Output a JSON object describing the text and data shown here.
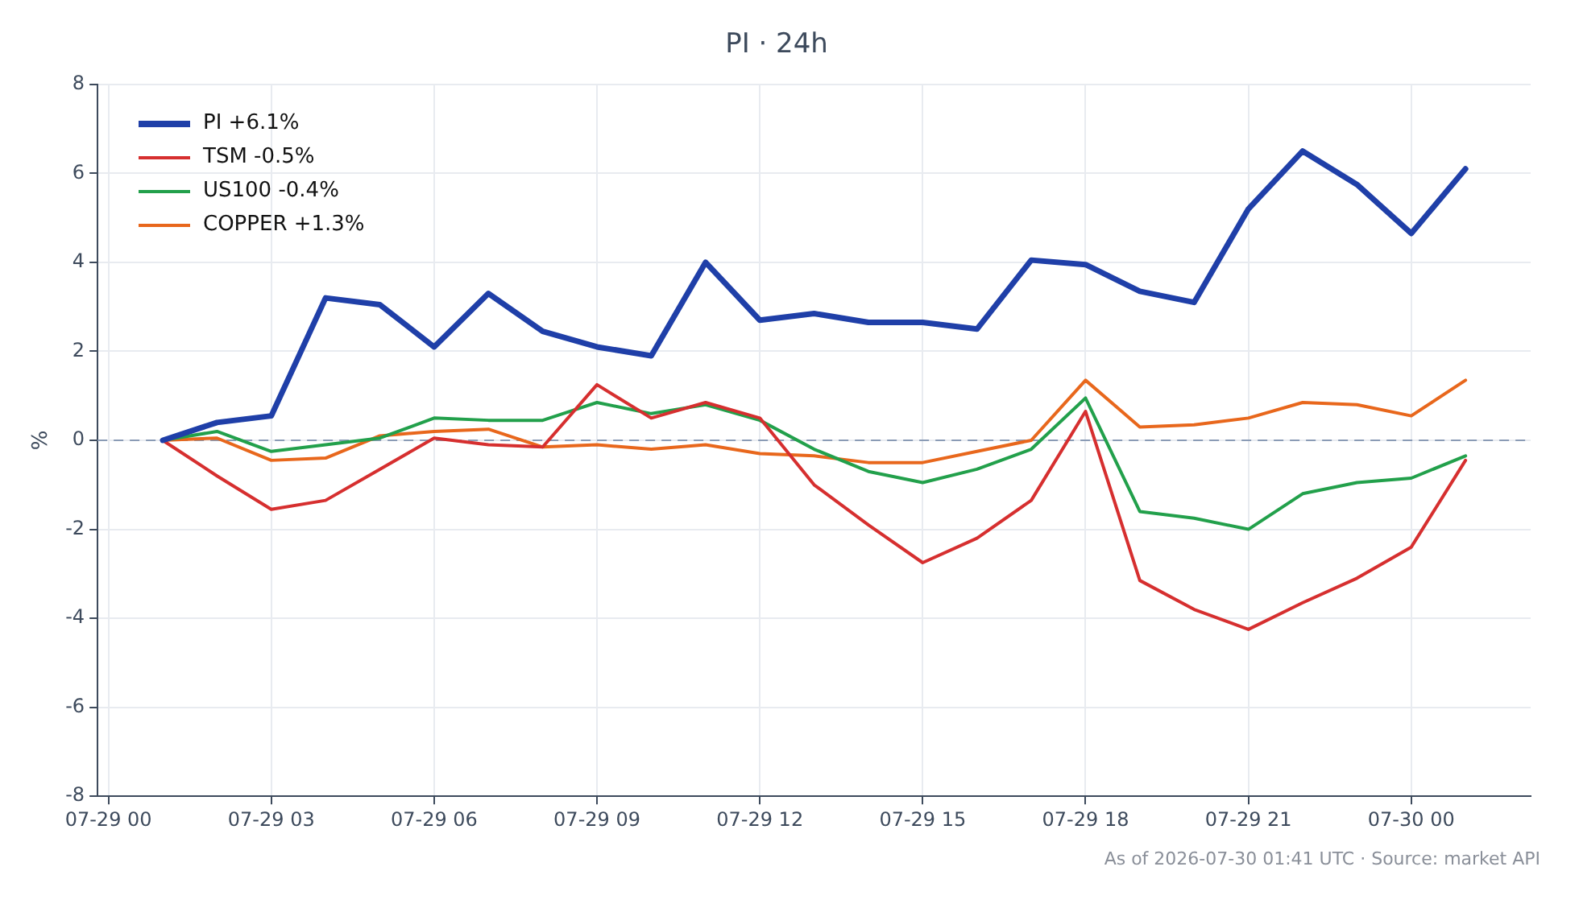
{
  "chart_data": {
    "type": "line",
    "title": "PI · 24h",
    "ylabel": "%",
    "x": [
      "--07-29T01:00",
      "--07-29T02:00",
      "--07-29T03:00",
      "--07-29T04:00",
      "--07-29T05:00",
      "--07-29T06:00",
      "--07-29T07:00",
      "--07-29T08:00",
      "--07-29T09:00",
      "--07-29T10:00",
      "--07-29T11:00",
      "--07-29T12:00",
      "--07-29T13:00",
      "--07-29T14:00",
      "--07-29T15:00",
      "--07-29T16:00",
      "--07-29T17:00",
      "--07-29T18:00",
      "--07-29T19:00",
      "--07-29T20:00",
      "--07-29T21:00",
      "--07-29T22:00",
      "--07-29T23:00",
      "--07-30T00:00",
      "--07-30T01:00"
    ],
    "xlim": [
      "--07-28T23:48",
      "--07-30T02:12"
    ],
    "xticks": [
      {
        "value": "--07-29T00:00",
        "label": "07-29 00"
      },
      {
        "value": "--07-29T03:00",
        "label": "07-29 03"
      },
      {
        "value": "--07-29T06:00",
        "label": "07-29 06"
      },
      {
        "value": "--07-29T09:00",
        "label": "07-29 09"
      },
      {
        "value": "--07-29T12:00",
        "label": "07-29 12"
      },
      {
        "value": "--07-29T15:00",
        "label": "07-29 15"
      },
      {
        "value": "--07-29T18:00",
        "label": "07-29 18"
      },
      {
        "value": "--07-29T21:00",
        "label": "07-29 21"
      },
      {
        "value": "--07-30T00:00",
        "label": "07-30 00"
      }
    ],
    "ylim": [
      -8,
      8
    ],
    "yticks": [
      -8,
      -6,
      -4,
      -2,
      0,
      2,
      4,
      6,
      8
    ],
    "series": [
      {
        "name": "PI +6.1%",
        "color": "#1f3fa8",
        "values": [
          0,
          0.4,
          0.55,
          3.2,
          3.05,
          2.1,
          3.3,
          2.45,
          2.1,
          1.9,
          4.0,
          2.7,
          2.85,
          2.65,
          2.65,
          2.5,
          4.05,
          3.95,
          3.35,
          3.1,
          5.2,
          6.5,
          5.75,
          4.65,
          6.1
        ]
      },
      {
        "name": "TSM -0.5%",
        "color": "#d62f2f",
        "values": [
          0,
          -0.8,
          -1.55,
          -1.35,
          -0.65,
          0.05,
          -0.1,
          -0.15,
          1.25,
          0.5,
          0.85,
          0.5,
          -1.0,
          -1.9,
          -2.75,
          -2.2,
          -1.35,
          0.65,
          -3.15,
          -3.8,
          -4.25,
          -3.65,
          -3.1,
          -2.4,
          -0.45
        ]
      },
      {
        "name": "US100 -0.4%",
        "color": "#22a04b",
        "values": [
          0,
          0.2,
          -0.25,
          -0.1,
          0.05,
          0.5,
          0.45,
          0.45,
          0.85,
          0.6,
          0.8,
          0.45,
          -0.2,
          -0.7,
          -0.95,
          -0.65,
          -0.2,
          0.95,
          -1.6,
          -1.75,
          -2.0,
          -1.2,
          -0.95,
          -0.85,
          -0.35
        ]
      },
      {
        "name": "COPPER +1.3%",
        "color": "#e8671c",
        "values": [
          0,
          0.05,
          -0.45,
          -0.4,
          0.1,
          0.2,
          0.25,
          -0.15,
          -0.1,
          -0.2,
          -0.1,
          -0.3,
          -0.35,
          -0.5,
          -0.5,
          -0.25,
          0.0,
          1.35,
          0.3,
          0.35,
          0.5,
          0.85,
          0.8,
          0.55,
          1.35
        ]
      }
    ],
    "ref_lines": [
      {
        "axis": "y",
        "value": 0,
        "color": "#8a9bb5",
        "line_style": "dashed"
      }
    ],
    "grid": true,
    "legend": "top left",
    "marker": "none",
    "line_style": "solid",
    "annotations": [
      "As of 2026-07-30 01:41 UTC · Source: market API"
    ]
  }
}
